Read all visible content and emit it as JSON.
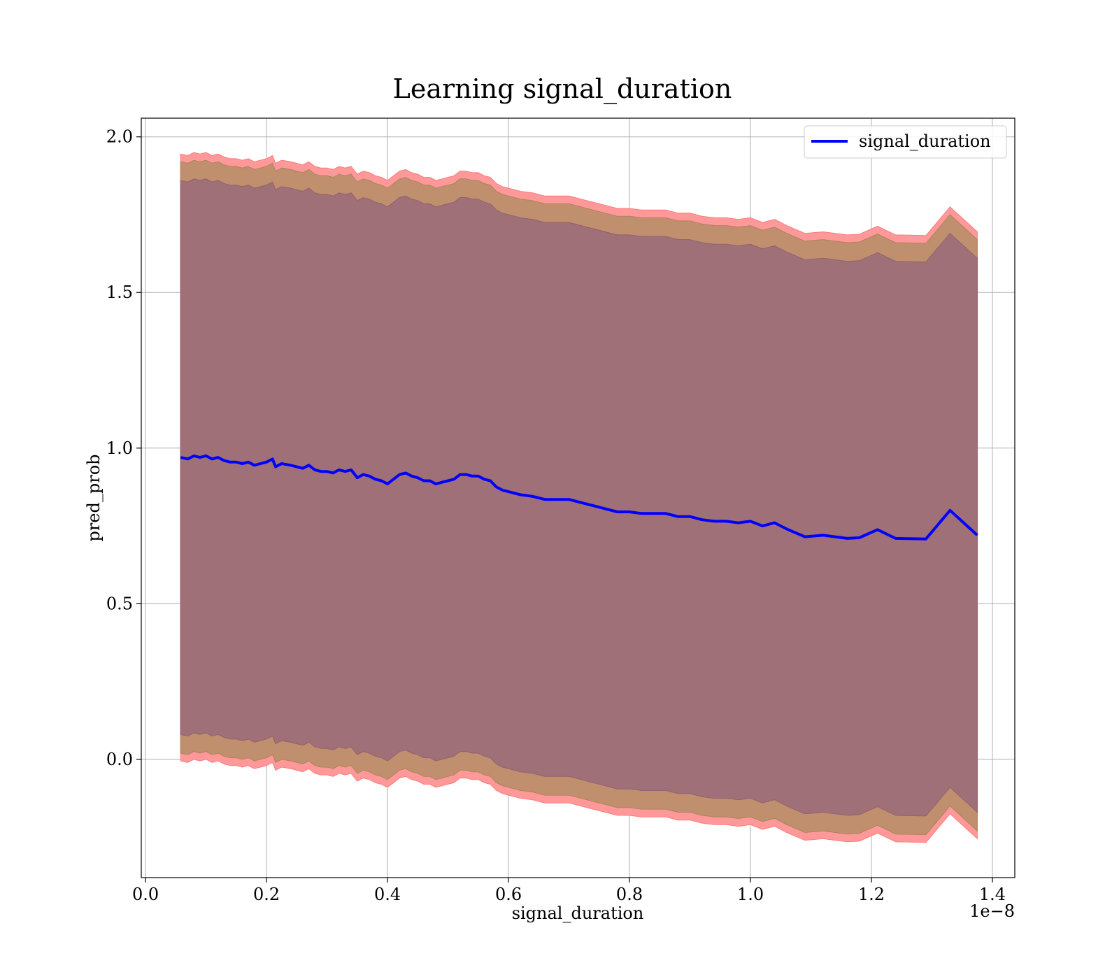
{
  "chart_data": {
    "type": "line",
    "title": "Learning signal_duration",
    "xlabel": "signal_duration",
    "ylabel": "pred_prob",
    "x_offset_text": "1e−8",
    "xlim": [
      -0.007,
      1.437
    ],
    "ylim": [
      -0.38,
      2.06
    ],
    "xticks": [
      0.0,
      0.2,
      0.4,
      0.6,
      0.8,
      1.0,
      1.2,
      1.4
    ],
    "xtick_labels": [
      "0.0",
      "0.2",
      "0.4",
      "0.6",
      "0.8",
      "1.0",
      "1.2",
      "1.4"
    ],
    "yticks": [
      0.0,
      0.5,
      1.0,
      1.5,
      2.0
    ],
    "ytick_labels": [
      "0.0",
      "0.5",
      "1.0",
      "1.5",
      "2.0"
    ],
    "grid": true,
    "legend": {
      "position": "top-right",
      "entries": [
        "signal_duration"
      ]
    },
    "colors": {
      "line": "#0000ff",
      "band_outer": "#ff9999",
      "band_middle": "#c0906e",
      "band_inner": "#a07078"
    },
    "series": [
      {
        "name": "signal_duration",
        "x": [
          0.058,
          0.07,
          0.08,
          0.09,
          0.1,
          0.11,
          0.12,
          0.13,
          0.14,
          0.15,
          0.16,
          0.17,
          0.18,
          0.19,
          0.2,
          0.21,
          0.215,
          0.225,
          0.24,
          0.26,
          0.27,
          0.28,
          0.29,
          0.3,
          0.31,
          0.32,
          0.33,
          0.34,
          0.35,
          0.36,
          0.37,
          0.38,
          0.39,
          0.4,
          0.41,
          0.42,
          0.43,
          0.44,
          0.45,
          0.46,
          0.47,
          0.48,
          0.49,
          0.5,
          0.51,
          0.52,
          0.53,
          0.54,
          0.55,
          0.56,
          0.57,
          0.58,
          0.59,
          0.6,
          0.62,
          0.64,
          0.66,
          0.68,
          0.7,
          0.72,
          0.74,
          0.76,
          0.78,
          0.8,
          0.82,
          0.84,
          0.86,
          0.88,
          0.9,
          0.92,
          0.94,
          0.96,
          0.98,
          1.0,
          1.02,
          1.04,
          1.06,
          1.09,
          1.12,
          1.16,
          1.18,
          1.21,
          1.24,
          1.29,
          1.33,
          1.375
        ],
        "y": [
          0.97,
          0.965,
          0.975,
          0.97,
          0.975,
          0.965,
          0.97,
          0.96,
          0.955,
          0.955,
          0.95,
          0.955,
          0.945,
          0.95,
          0.955,
          0.965,
          0.94,
          0.95,
          0.945,
          0.935,
          0.945,
          0.93,
          0.925,
          0.925,
          0.92,
          0.93,
          0.925,
          0.93,
          0.905,
          0.915,
          0.91,
          0.9,
          0.895,
          0.885,
          0.9,
          0.915,
          0.92,
          0.91,
          0.905,
          0.895,
          0.895,
          0.885,
          0.89,
          0.895,
          0.9,
          0.915,
          0.915,
          0.91,
          0.91,
          0.9,
          0.895,
          0.875,
          0.865,
          0.86,
          0.85,
          0.845,
          0.835,
          0.835,
          0.835,
          0.825,
          0.815,
          0.805,
          0.795,
          0.795,
          0.79,
          0.79,
          0.79,
          0.78,
          0.78,
          0.77,
          0.765,
          0.765,
          0.76,
          0.765,
          0.75,
          0.76,
          0.74,
          0.715,
          0.72,
          0.71,
          0.712,
          0.738,
          0.71,
          0.708,
          0.8,
          0.72
        ],
        "band_inner_halfwidth": [
          0.89,
          0.89,
          0.89,
          0.89,
          0.89,
          0.89,
          0.89,
          0.89,
          0.89,
          0.89,
          0.89,
          0.89,
          0.89,
          0.89,
          0.89,
          0.89,
          0.89,
          0.89,
          0.89,
          0.89,
          0.89,
          0.89,
          0.89,
          0.89,
          0.89,
          0.89,
          0.89,
          0.89,
          0.89,
          0.89,
          0.89,
          0.89,
          0.89,
          0.89,
          0.89,
          0.89,
          0.89,
          0.89,
          0.89,
          0.89,
          0.89,
          0.89,
          0.89,
          0.89,
          0.89,
          0.89,
          0.89,
          0.89,
          0.89,
          0.89,
          0.89,
          0.89,
          0.89,
          0.89,
          0.89,
          0.89,
          0.89,
          0.89,
          0.89,
          0.89,
          0.89,
          0.89,
          0.89,
          0.89,
          0.89,
          0.89,
          0.89,
          0.89,
          0.89,
          0.89,
          0.89,
          0.89,
          0.89,
          0.89,
          0.89,
          0.89,
          0.89,
          0.89,
          0.89,
          0.89,
          0.89,
          0.89,
          0.89,
          0.89,
          0.89,
          0.89
        ],
        "band_middle_halfwidth": [
          0.95,
          0.95,
          0.95,
          0.95,
          0.95,
          0.95,
          0.95,
          0.95,
          0.95,
          0.95,
          0.95,
          0.95,
          0.95,
          0.95,
          0.95,
          0.95,
          0.95,
          0.95,
          0.95,
          0.95,
          0.95,
          0.95,
          0.95,
          0.95,
          0.95,
          0.95,
          0.95,
          0.95,
          0.95,
          0.95,
          0.95,
          0.95,
          0.95,
          0.95,
          0.95,
          0.95,
          0.95,
          0.95,
          0.95,
          0.95,
          0.95,
          0.95,
          0.95,
          0.95,
          0.95,
          0.95,
          0.95,
          0.95,
          0.95,
          0.95,
          0.95,
          0.95,
          0.95,
          0.95,
          0.95,
          0.95,
          0.95,
          0.95,
          0.95,
          0.95,
          0.95,
          0.95,
          0.95,
          0.95,
          0.95,
          0.95,
          0.95,
          0.95,
          0.95,
          0.95,
          0.95,
          0.95,
          0.95,
          0.95,
          0.95,
          0.95,
          0.95,
          0.95,
          0.95,
          0.95,
          0.95,
          0.95,
          0.95,
          0.95,
          0.95,
          0.95
        ],
        "band_outer_halfwidth": [
          0.975,
          0.975,
          0.975,
          0.975,
          0.975,
          0.975,
          0.975,
          0.975,
          0.975,
          0.975,
          0.975,
          0.975,
          0.975,
          0.975,
          0.975,
          0.975,
          0.975,
          0.975,
          0.975,
          0.975,
          0.975,
          0.975,
          0.975,
          0.975,
          0.975,
          0.975,
          0.975,
          0.975,
          0.975,
          0.975,
          0.975,
          0.975,
          0.975,
          0.975,
          0.975,
          0.975,
          0.975,
          0.975,
          0.975,
          0.975,
          0.975,
          0.975,
          0.975,
          0.975,
          0.975,
          0.975,
          0.975,
          0.975,
          0.975,
          0.975,
          0.975,
          0.975,
          0.975,
          0.975,
          0.975,
          0.975,
          0.975,
          0.975,
          0.975,
          0.975,
          0.975,
          0.975,
          0.975,
          0.975,
          0.975,
          0.975,
          0.975,
          0.975,
          0.975,
          0.975,
          0.975,
          0.975,
          0.975,
          0.975,
          0.975,
          0.975,
          0.975,
          0.975,
          0.975,
          0.975,
          0.975,
          0.975,
          0.975,
          0.975,
          0.975,
          0.975
        ]
      }
    ]
  }
}
